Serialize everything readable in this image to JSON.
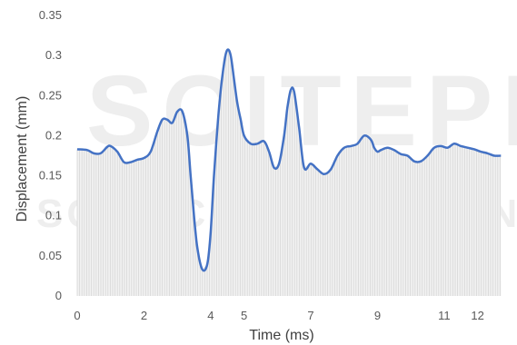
{
  "chart_data": {
    "type": "area",
    "xlabel": "Time (ms)",
    "ylabel": "Displacement (mm)",
    "xlim": [
      0,
      12.8
    ],
    "ylim": [
      0,
      0.35
    ],
    "x_ticks": [
      0,
      2,
      4,
      5,
      7,
      9,
      11,
      12
    ],
    "y_ticks": [
      0,
      0.05,
      0.1,
      0.15,
      0.2,
      0.25,
      0.3,
      0.35
    ],
    "grid": false,
    "legend": "none",
    "series": [
      {
        "color": "#4472c4",
        "fill_color": "#d9d9d9",
        "x": [
          0,
          0.3,
          0.5,
          0.7,
          0.9,
          1.0,
          1.2,
          1.4,
          1.6,
          1.8,
          2.0,
          2.2,
          2.4,
          2.55,
          2.7,
          2.85,
          3.0,
          3.15,
          3.3,
          3.4,
          3.5,
          3.6,
          3.75,
          3.9,
          4.0,
          4.1,
          4.25,
          4.4,
          4.5,
          4.6,
          4.7,
          4.8,
          4.9,
          5.0,
          5.2,
          5.4,
          5.6,
          5.75,
          5.9,
          6.05,
          6.2,
          6.3,
          6.4,
          6.5,
          6.65,
          6.8,
          7.0,
          7.2,
          7.4,
          7.6,
          7.8,
          8.0,
          8.2,
          8.4,
          8.6,
          8.8,
          8.9,
          9.0,
          9.1,
          9.3,
          9.5,
          9.7,
          9.9,
          10.1,
          10.3,
          10.5,
          10.7,
          10.9,
          11.1,
          11.3,
          11.5,
          11.7,
          11.9,
          12.1,
          12.3,
          12.5,
          12.7
        ],
        "values": [
          0.183,
          0.182,
          0.178,
          0.178,
          0.186,
          0.187,
          0.18,
          0.167,
          0.167,
          0.17,
          0.172,
          0.18,
          0.205,
          0.22,
          0.22,
          0.216,
          0.23,
          0.23,
          0.2,
          0.15,
          0.1,
          0.06,
          0.033,
          0.04,
          0.08,
          0.15,
          0.235,
          0.29,
          0.307,
          0.3,
          0.27,
          0.24,
          0.22,
          0.2,
          0.19,
          0.19,
          0.193,
          0.18,
          0.16,
          0.165,
          0.2,
          0.235,
          0.257,
          0.255,
          0.21,
          0.16,
          0.165,
          0.158,
          0.152,
          0.158,
          0.175,
          0.185,
          0.187,
          0.19,
          0.2,
          0.195,
          0.185,
          0.18,
          0.182,
          0.185,
          0.182,
          0.177,
          0.175,
          0.168,
          0.168,
          0.175,
          0.185,
          0.187,
          0.185,
          0.19,
          0.187,
          0.185,
          0.183,
          0.18,
          0.178,
          0.175,
          0.175
        ]
      }
    ]
  }
}
